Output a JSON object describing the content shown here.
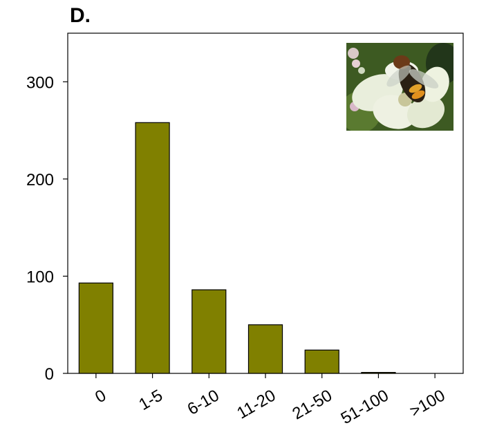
{
  "panel_label": "D.",
  "chart_data": {
    "type": "bar",
    "categories": [
      "0",
      "1-5",
      "6-10",
      "11-20",
      "21-50",
      "51-100",
      ">100"
    ],
    "values": [
      93,
      258,
      86,
      50,
      24,
      1,
      0
    ],
    "title": "",
    "xlabel": "",
    "ylabel": "",
    "ylim": [
      0,
      350
    ],
    "yticks": [
      0,
      100,
      200,
      300
    ],
    "grid": false,
    "bar_color": "#808000",
    "edge_color": "#000000"
  },
  "inset_image": {
    "subject": "hoverfly-on-white-flower-icon"
  }
}
